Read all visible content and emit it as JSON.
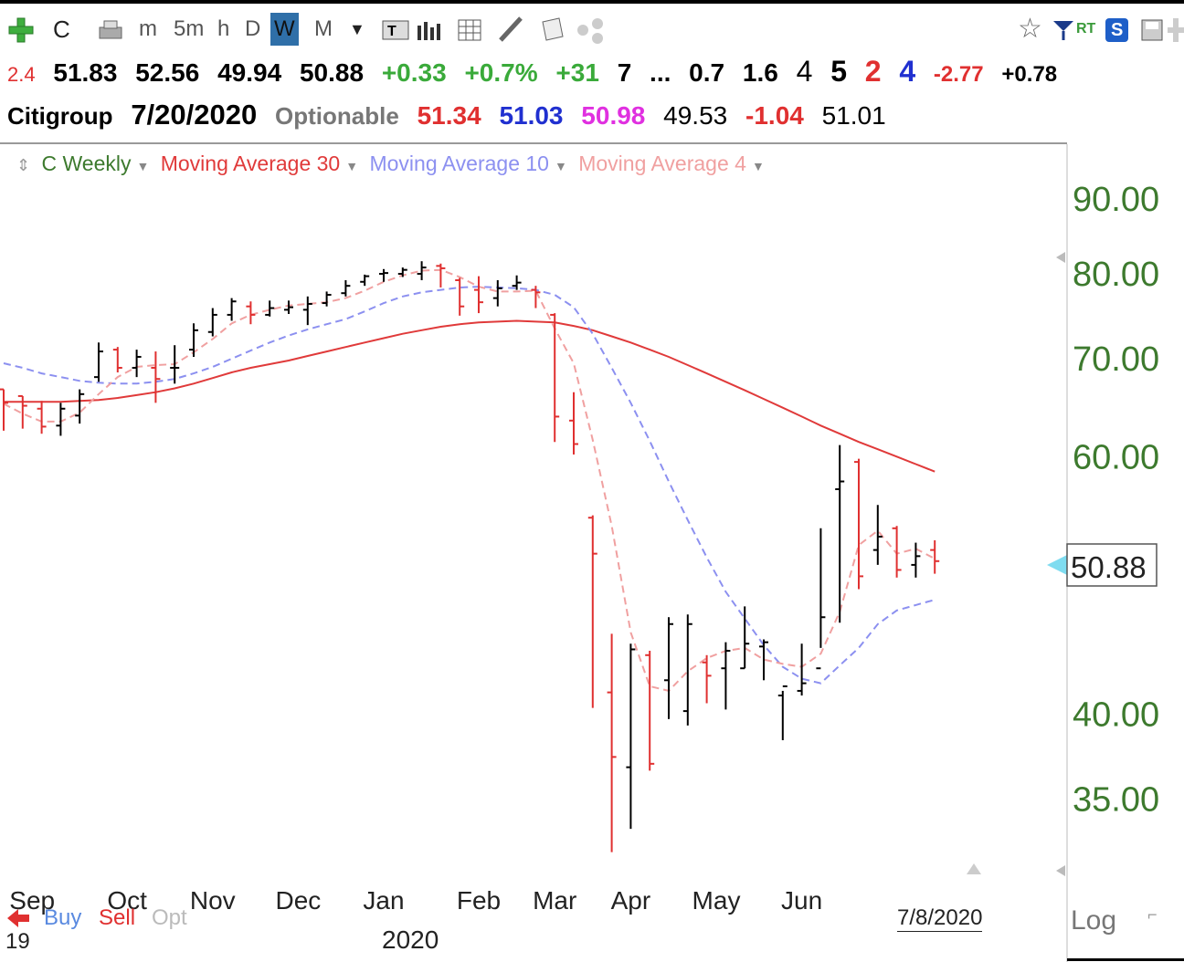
{
  "toolbar": {
    "symbol": "C",
    "timeframes": [
      "m",
      "5m",
      "h",
      "D",
      "W",
      "M"
    ],
    "selected": "W",
    "rt_label": "RT",
    "s_label": "S"
  },
  "quote_line1": {
    "first": "2.4",
    "open": "51.83",
    "high": "52.56",
    "low": "49.94",
    "close": "50.88",
    "chg": "+0.33",
    "chg_pct": "+0.7%",
    "v1": "+31",
    "v2": "7",
    "dots": "...",
    "v3": "0.7",
    "v4": "1.6",
    "v5": "4",
    "v6": "5",
    "v7": "2",
    "v8": "4",
    "v9": "-2.77",
    "v10": "+0.78"
  },
  "quote_line2": {
    "name": "Citigroup",
    "date": "7/20/2020",
    "optionable": "Optionable",
    "p1": "51.34",
    "p2": "51.03",
    "p3": "50.98",
    "p4": "49.53",
    "p5": "-1.04",
    "p6": "51.01"
  },
  "legend": {
    "main": "C Weekly",
    "ma30": "Moving Average 30",
    "ma10": "Moving Average 10",
    "ma4": "Moving Average 4"
  },
  "colors": {
    "up_bar": "#000000",
    "down_bar": "#e03030",
    "ma30": "#e03a3a",
    "ma10": "#8c90f0",
    "ma4": "#f0a0a0",
    "axis_label": "#3d7a2e",
    "price_tag_arrow": "#7fdcf0"
  },
  "bottom": {
    "buy": "Buy",
    "sell": "Sell",
    "opt": "Opt",
    "year_label": "2020",
    "left_year": "19",
    "date_marker": "7/8/2020",
    "log": "Log"
  },
  "chart_data": {
    "type": "ohlc",
    "y_ticks": [
      "90.00",
      "80.00",
      "70.00",
      "60.00",
      "40.00",
      "35.00"
    ],
    "y_tick_values": [
      90,
      80,
      70,
      60,
      40,
      35
    ],
    "last_price_label": "50.88",
    "last_price": 50.88,
    "x_labels": [
      "Sep",
      "Oct",
      "Nov",
      "Dec",
      "Jan",
      "Feb",
      "Mar",
      "Apr",
      "May",
      "Jun"
    ],
    "x_label_week_index": [
      1.5,
      6.5,
      11,
      15.5,
      20,
      25,
      29,
      33,
      37.5,
      42
    ],
    "ylim": [
      31,
      95
    ],
    "scale": "log",
    "bars": [
      {
        "o": 66.7,
        "h": 66.7,
        "l": 62.5,
        "c": 65.3
      },
      {
        "o": 66.0,
        "h": 66.0,
        "l": 62.7,
        "c": 65.0
      },
      {
        "o": 64.7,
        "h": 65.5,
        "l": 62.2,
        "c": 62.9
      },
      {
        "o": 63.0,
        "h": 65.3,
        "l": 62.0,
        "c": 64.7
      },
      {
        "o": 64.0,
        "h": 66.7,
        "l": 63.2,
        "c": 66.2
      },
      {
        "o": 68.0,
        "h": 71.8,
        "l": 67.5,
        "c": 70.8
      },
      {
        "o": 71.0,
        "h": 71.3,
        "l": 68.5,
        "c": 69.0
      },
      {
        "o": 69.0,
        "h": 71.0,
        "l": 68.0,
        "c": 70.2
      },
      {
        "o": 69.0,
        "h": 70.8,
        "l": 65.3,
        "c": 67.8
      },
      {
        "o": 69.0,
        "h": 71.5,
        "l": 67.3,
        "c": 69.0
      },
      {
        "o": 71.0,
        "h": 74.0,
        "l": 70.2,
        "c": 73.2
      },
      {
        "o": 73.0,
        "h": 75.8,
        "l": 72.5,
        "c": 75.0
      },
      {
        "o": 75.0,
        "h": 77.0,
        "l": 74.3,
        "c": 76.6
      },
      {
        "o": 76.0,
        "h": 76.6,
        "l": 73.9,
        "c": 75.0
      },
      {
        "o": 75.0,
        "h": 76.7,
        "l": 74.8,
        "c": 75.8
      },
      {
        "o": 75.6,
        "h": 76.7,
        "l": 75.1,
        "c": 75.9
      },
      {
        "o": 75.6,
        "h": 77.2,
        "l": 73.8,
        "c": 76.3
      },
      {
        "o": 76.4,
        "h": 77.8,
        "l": 76.0,
        "c": 77.4
      },
      {
        "o": 77.6,
        "h": 79.2,
        "l": 77.2,
        "c": 78.5
      },
      {
        "o": 79.0,
        "h": 79.9,
        "l": 78.5,
        "c": 79.7
      },
      {
        "o": 80.0,
        "h": 80.6,
        "l": 79.0,
        "c": 80.1
      },
      {
        "o": 80.0,
        "h": 80.8,
        "l": 79.6,
        "c": 80.5
      },
      {
        "o": 80.0,
        "h": 81.6,
        "l": 79.2,
        "c": 80.8
      },
      {
        "o": 81.0,
        "h": 81.3,
        "l": 78.3,
        "c": 80.7
      },
      {
        "o": 79.2,
        "h": 79.5,
        "l": 74.9,
        "c": 76.0
      },
      {
        "o": 78.0,
        "h": 79.7,
        "l": 75.2,
        "c": 76.5
      },
      {
        "o": 77.0,
        "h": 79.2,
        "l": 76.0,
        "c": 78.2
      },
      {
        "o": 78.5,
        "h": 79.8,
        "l": 78.0,
        "c": 78.9
      },
      {
        "o": 78.0,
        "h": 78.5,
        "l": 75.8,
        "c": 77.7
      },
      {
        "o": 75.0,
        "h": 75.2,
        "l": 61.4,
        "c": 63.9
      },
      {
        "o": 63.5,
        "h": 66.4,
        "l": 60.2,
        "c": 61.2
      },
      {
        "o": 54.5,
        "h": 54.7,
        "l": 40.4,
        "c": 51.5
      },
      {
        "o": 41.4,
        "h": 45.4,
        "l": 32.2,
        "c": 37.4
      },
      {
        "o": 36.8,
        "h": 44.7,
        "l": 33.4,
        "c": 44.3
      },
      {
        "o": 43.9,
        "h": 44.2,
        "l": 36.6,
        "c": 37.0
      },
      {
        "o": 42.2,
        "h": 46.6,
        "l": 39.7,
        "c": 46.1
      },
      {
        "o": 40.2,
        "h": 46.8,
        "l": 39.3,
        "c": 46.1
      },
      {
        "o": 43.4,
        "h": 43.9,
        "l": 40.7,
        "c": 42.5
      },
      {
        "o": 43.0,
        "h": 44.8,
        "l": 40.3,
        "c": 44.2
      },
      {
        "o": 43.0,
        "h": 47.4,
        "l": 43.0,
        "c": 44.7
      },
      {
        "o": 44.5,
        "h": 45.0,
        "l": 42.2,
        "c": 44.8
      },
      {
        "o": 41.2,
        "h": 41.5,
        "l": 38.4,
        "c": 41.8
      },
      {
        "o": 41.5,
        "h": 44.7,
        "l": 41.2,
        "c": 42.0
      },
      {
        "o": 43.0,
        "h": 53.6,
        "l": 44.4,
        "c": 46.6
      },
      {
        "o": 57.0,
        "h": 61.1,
        "l": 46.2,
        "c": 57.7
      },
      {
        "o": 59.5,
        "h": 59.8,
        "l": 48.7,
        "c": 49.7
      },
      {
        "o": 51.8,
        "h": 55.6,
        "l": 50.6,
        "c": 52.9
      },
      {
        "o": 53.6,
        "h": 53.8,
        "l": 49.6,
        "c": 50.2
      },
      {
        "o": 50.6,
        "h": 52.4,
        "l": 49.6,
        "c": 51.3
      },
      {
        "o": 51.8,
        "h": 52.6,
        "l": 49.9,
        "c": 50.9
      }
    ],
    "series": [
      {
        "name": "Moving Average 30",
        "values": [
          65.4,
          65.4,
          65.4,
          65.4,
          65.5,
          65.6,
          65.8,
          66.1,
          66.4,
          66.8,
          67.3,
          67.9,
          68.5,
          69.0,
          69.4,
          69.8,
          70.3,
          70.8,
          71.3,
          71.8,
          72.3,
          72.8,
          73.2,
          73.6,
          73.9,
          74.1,
          74.2,
          74.3,
          74.2,
          74.1,
          73.7,
          73.2,
          72.5,
          71.8,
          71.0,
          70.2,
          69.3,
          68.4,
          67.5,
          66.6,
          65.7,
          64.8,
          63.9,
          63.0,
          62.2,
          61.4,
          60.7,
          60.0,
          59.3,
          58.6
        ]
      },
      {
        "name": "Moving Average 10",
        "values": [
          69.5,
          69.0,
          68.4,
          68.0,
          67.6,
          67.4,
          67.3,
          67.3,
          67.5,
          67.8,
          68.4,
          69.1,
          70.0,
          70.9,
          71.8,
          72.6,
          73.3,
          73.9,
          74.5,
          75.4,
          76.4,
          77.2,
          77.7,
          78.0,
          78.3,
          78.4,
          78.3,
          78.2,
          78.0,
          77.4,
          75.9,
          72.8,
          69.0,
          65.3,
          61.5,
          57.7,
          54.3,
          51.2,
          48.5,
          46.5,
          44.6,
          43.1,
          42.3,
          42.0,
          43.2,
          44.4,
          46.1,
          47.1,
          47.5,
          47.9
        ]
      },
      {
        "name": "Moving Average 4",
        "values": [
          65.2,
          64.2,
          63.4,
          63.4,
          64.3,
          66.2,
          68.0,
          69.1,
          69.3,
          69.4,
          70.7,
          72.2,
          74.0,
          75.0,
          75.6,
          76.1,
          76.3,
          76.5,
          77.0,
          77.9,
          79.0,
          79.8,
          80.4,
          80.5,
          79.6,
          78.4,
          77.8,
          77.8,
          77.9,
          73.4,
          69.5,
          61.6,
          53.8,
          45.5,
          41.8,
          41.5,
          42.8,
          43.7,
          44.2,
          44.4,
          43.6,
          43.3,
          43.1,
          44.0,
          47.0,
          52.2,
          53.4,
          51.5,
          51.9,
          51.1
        ]
      }
    ]
  }
}
